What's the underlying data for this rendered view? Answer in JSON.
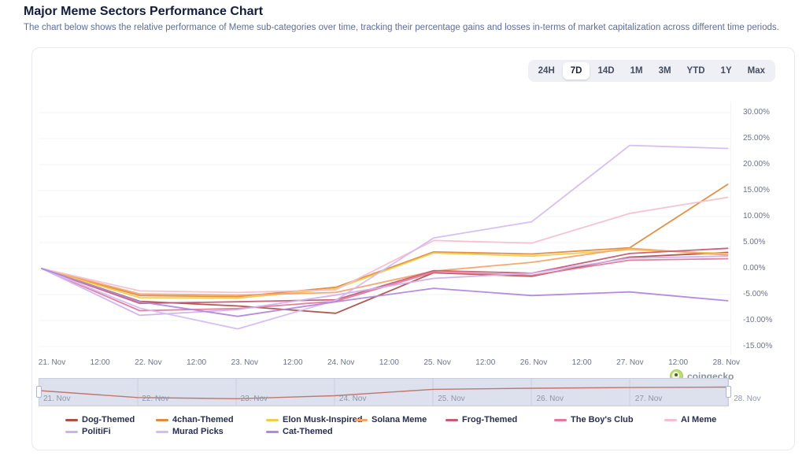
{
  "header": {
    "title": "Major Meme Sectors Performance Chart",
    "subtitle": "The chart below shows the relative performance of Meme sub-categories over time, tracking their percentage gains and losses in-terms of market capitalization across different time periods."
  },
  "toolbar": {
    "ranges": [
      "24H",
      "7D",
      "14D",
      "1M",
      "3M",
      "YTD",
      "1Y",
      "Max"
    ],
    "selected": "7D"
  },
  "watermark": {
    "icon": "coingecko-gecko-icon",
    "text": "coingecko"
  },
  "chart_data": {
    "type": "line",
    "title": "Major Meme Sectors Performance Chart",
    "xlabel": "",
    "ylabel": "",
    "ylim": [
      -16.5,
      32.5
    ],
    "grid": true,
    "legend_position": "bottom",
    "categories": [
      "21. Nov",
      "22. Nov",
      "23. Nov",
      "24. Nov",
      "25. Nov",
      "26. Nov",
      "27. Nov",
      "28. Nov"
    ],
    "x_axis_labels": [
      "21. Nov",
      "12:00",
      "22. Nov",
      "12:00",
      "23. Nov",
      "12:00",
      "24. Nov",
      "12:00",
      "25. Nov",
      "12:00",
      "26. Nov",
      "12:00",
      "27. Nov",
      "12:00",
      "28. Nov"
    ],
    "y_ticks": [
      "30.00%",
      "25.00%",
      "20.00%",
      "15.00%",
      "10.00%",
      "5.00%",
      "0.00%",
      "-5.00%",
      "-10.00%",
      "-15.00%"
    ],
    "y_tick_values": [
      30,
      25,
      20,
      15,
      10,
      5,
      0,
      -5,
      -10,
      -15
    ],
    "series": [
      {
        "name": "Dog-Themed",
        "color": "#ad4f45",
        "values": [
          0,
          -6.3,
          -7.2,
          -8.6,
          -0.8,
          -1.5,
          2.2,
          3.1
        ]
      },
      {
        "name": "4chan-Themed",
        "color": "#e08a3c",
        "values": [
          0,
          -5.2,
          -5.4,
          -3.6,
          3.2,
          2.8,
          4.0,
          16.2
        ]
      },
      {
        "name": "Elon Musk-Inspired",
        "color": "#efcb4f",
        "values": [
          0,
          -5.6,
          -5.7,
          -3.9,
          3.0,
          2.4,
          3.6,
          2.9
        ]
      },
      {
        "name": "Solana Meme",
        "color": "#f2a469",
        "values": [
          0,
          -4.9,
          -5.1,
          -4.6,
          -0.5,
          1.2,
          3.9,
          2.6
        ]
      },
      {
        "name": "Frog-Themed",
        "color": "#c75b76",
        "values": [
          0,
          -6.7,
          -6.4,
          -6.0,
          -0.4,
          -0.9,
          2.9,
          3.9
        ]
      },
      {
        "name": "The Boy's Club",
        "color": "#e2799b",
        "values": [
          0,
          -8.1,
          -7.7,
          -6.3,
          -0.7,
          -1.3,
          1.6,
          1.9
        ]
      },
      {
        "name": "AI Meme",
        "color": "#f4bfcd",
        "values": [
          0,
          -4.3,
          -4.6,
          -4.1,
          5.4,
          4.9,
          10.6,
          13.7
        ]
      },
      {
        "name": "PolitiFi",
        "color": "#cdb2ec",
        "values": [
          0,
          -9.0,
          -7.9,
          -5.1,
          -1.9,
          -0.9,
          2.0,
          2.4
        ]
      },
      {
        "name": "Murad Picks",
        "color": "#d5bbf2",
        "values": [
          0,
          -7.6,
          -11.6,
          -6.1,
          5.9,
          9.0,
          23.7,
          23.1
        ]
      },
      {
        "name": "Cat-Themed",
        "color": "#b287dc",
        "values": [
          0,
          -6.4,
          -9.2,
          -6.4,
          -3.8,
          -5.2,
          -4.5,
          -6.2
        ]
      }
    ],
    "navigator": {
      "labels": [
        "21. Nov",
        "22. Nov",
        "23. Nov",
        "24. Nov",
        "25. Nov",
        "26. Nov",
        "27. Nov",
        "28. Nov"
      ],
      "line_color": "#c0776f",
      "values": [
        0,
        -6.5,
        -7.6,
        -4.8,
        1.2,
        2.2,
        2.9,
        3.3
      ]
    },
    "style": {
      "gridline_color": "#f2f3f6",
      "plot_right_border": "#e8eaef",
      "nav_gridline_color": "#c9d0df",
      "nav_fill": "#dde1ed"
    }
  }
}
